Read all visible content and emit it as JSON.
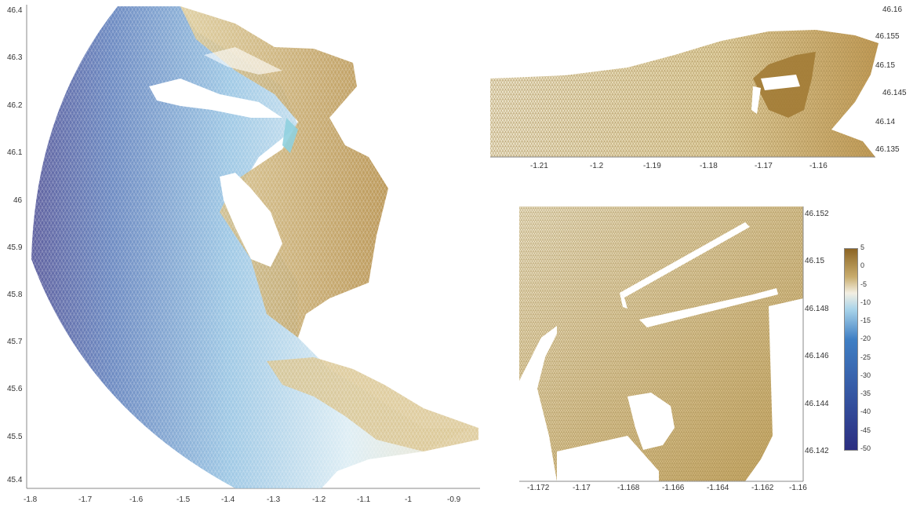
{
  "main_map": {
    "x_ticks": [
      "-1.8",
      "-1.7",
      "-1.6",
      "-1.5",
      "-1.4",
      "-1.3",
      "-1.2",
      "-1.1",
      "-1",
      "-0.9"
    ],
    "y_ticks": [
      "46.4",
      "46.3",
      "46.2",
      "46.1",
      "46",
      "45.9",
      "45.8",
      "45.7",
      "45.6",
      "45.5",
      "45.4"
    ]
  },
  "top_inset": {
    "x_ticks": [
      "-1.21",
      "-1.2",
      "-1.19",
      "-1.18",
      "-1.17",
      "-1.16"
    ],
    "y_ticks": [
      "46.16",
      "46.155",
      "46.15",
      "46.145",
      "46.14",
      "46.135"
    ]
  },
  "bottom_inset": {
    "x_ticks": [
      "-1.172",
      "-1.17",
      "-1.168",
      "-1.166",
      "-1.164",
      "-1.162",
      "-1.16"
    ],
    "y_ticks": [
      "46.152",
      "46.15",
      "46.148",
      "46.146",
      "46.144",
      "46.142"
    ]
  },
  "colorbar": {
    "labels": [
      "5",
      "0",
      "-5",
      "-10",
      "-15",
      "-20",
      "-25",
      "-30",
      "-35",
      "-40",
      "-45",
      "-50"
    ],
    "range": [
      -50,
      5
    ],
    "colors": {
      "deep": "#2b2d80",
      "mid_blue": "#3f7fc4",
      "light_blue": "#a9d4ea",
      "white": "#f3efe2",
      "sand": "#c9ad6e",
      "brown": "#8b6424"
    }
  }
}
